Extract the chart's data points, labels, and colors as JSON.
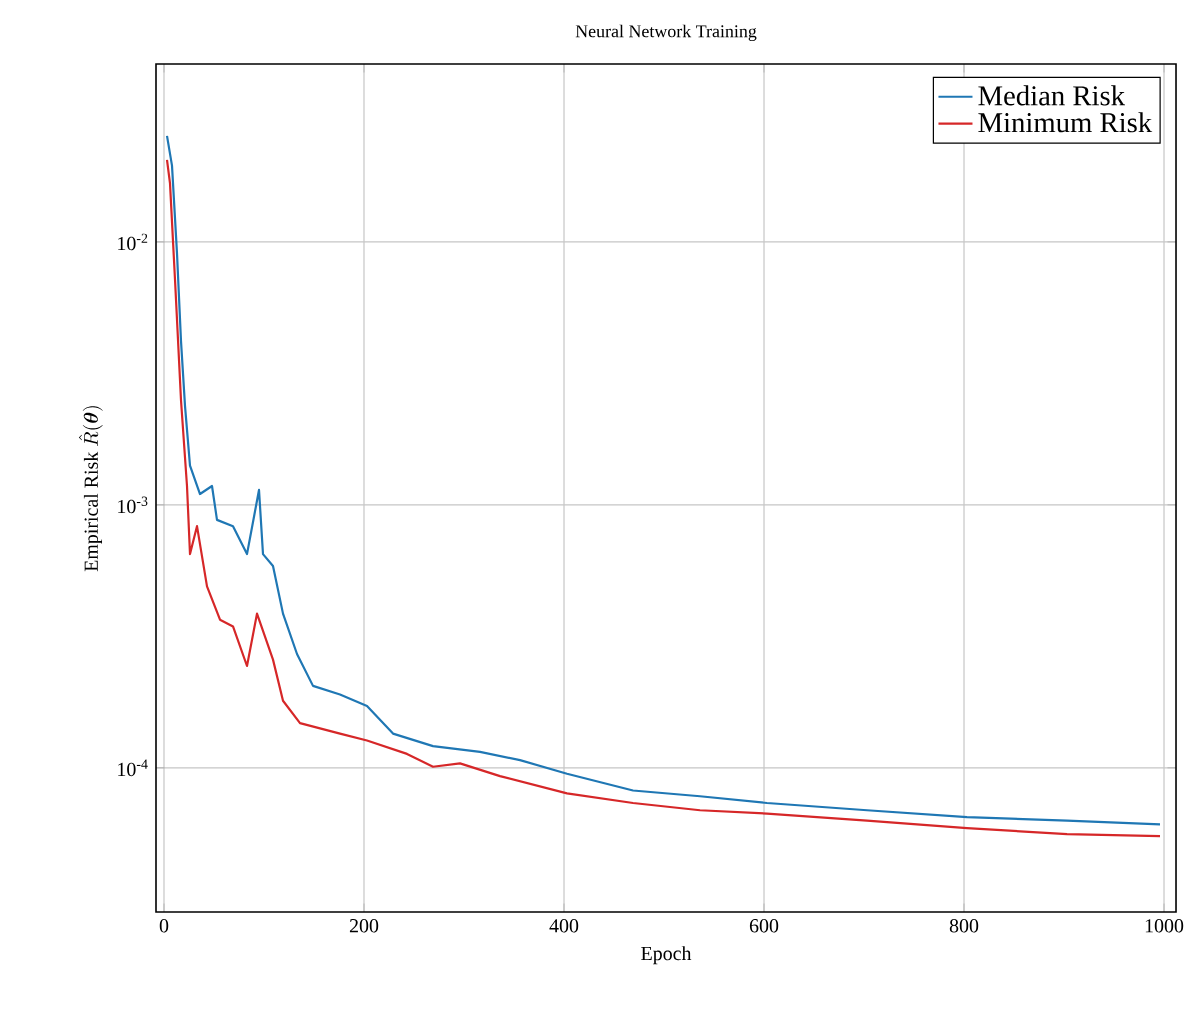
{
  "chart_data": {
    "type": "line",
    "title": "Neural Network Training",
    "xlabel": "Epoch",
    "ylabel": "\\text{Empirical Risk }\\hat{R}(\\boldsymbol{\\theta})",
    "xlim": [
      -8,
      1012
    ],
    "ylim": [
      2.83e-05,
      0.0475
    ],
    "log": "y",
    "grid": true,
    "legend": "top right",
    "line_style": "solid",
    "marker": "none",
    "xticks": [
      0,
      200,
      400,
      600,
      800,
      1000
    ],
    "yticks": [
      {
        "value": 0.01,
        "label": "10$^{-2}$"
      },
      {
        "value": 0.001,
        "label": "10$^{-3}$"
      },
      {
        "value": 0.0001,
        "label": "10$^{-4}$"
      }
    ],
    "series": [
      {
        "name": "Median Risk",
        "color": "#1f77b4",
        "x": [
          3,
          8,
          13,
          17,
          21,
          26,
          36,
          48,
          53,
          69,
          83,
          95,
          99,
          109,
          119,
          133,
          149,
          176,
          203,
          229,
          269,
          316,
          356,
          403,
          469,
          536,
          603,
          703,
          803,
          903,
          996
        ],
        "values": [
          0.0253,
          0.0195,
          0.00905,
          0.0042,
          0.00238,
          0.00141,
          0.0011,
          0.00118,
          0.000877,
          0.00083,
          0.00065,
          0.00114,
          0.00065,
          0.000586,
          0.000386,
          0.000271,
          0.000205,
          0.00019,
          0.000172,
          0.000135,
          0.000121,
          0.000115,
          0.000107,
          9.5e-05,
          8.2e-05,
          7.8e-05,
          7.35e-05,
          6.9e-05,
          6.5e-05,
          6.3e-05,
          6.1e-05
        ]
      },
      {
        "name": "Minimum Risk",
        "color": "#d62728",
        "x": [
          3,
          6,
          11,
          17,
          23,
          26,
          33,
          43,
          56,
          69,
          83,
          93,
          109,
          119,
          136,
          176,
          203,
          243,
          269,
          296,
          336,
          403,
          469,
          536,
          603,
          703,
          803,
          903,
          996
        ],
        "values": [
          0.0205,
          0.0167,
          0.0072,
          0.0025,
          0.00118,
          0.00065,
          0.00083,
          0.00049,
          0.000366,
          0.000345,
          0.000244,
          0.000386,
          0.000258,
          0.00018,
          0.000148,
          0.000135,
          0.000127,
          0.000113,
          0.000101,
          0.000104,
          9.3e-05,
          8e-05,
          7.35e-05,
          6.9e-05,
          6.7e-05,
          6.3e-05,
          5.9e-05,
          5.6e-05,
          5.5e-05
        ]
      }
    ]
  }
}
